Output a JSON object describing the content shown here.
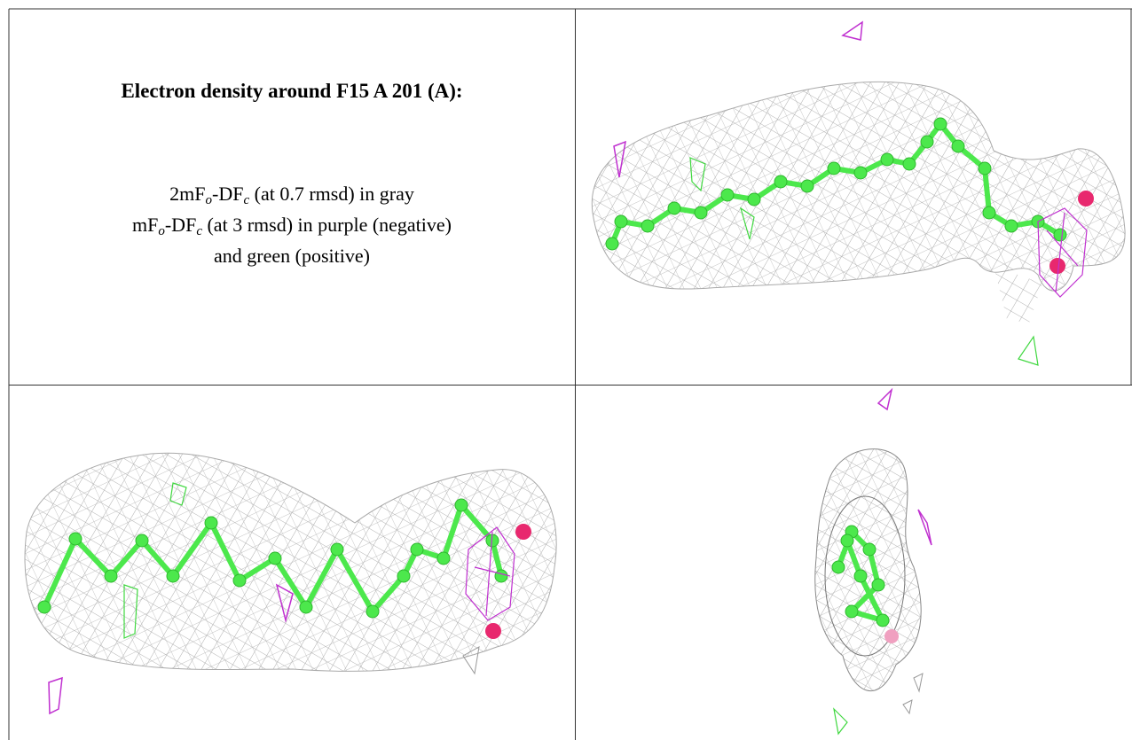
{
  "panel": {
    "title": "Electron density around F15 A 201 (A):",
    "legend": [
      [
        "2mF",
        "o",
        "-DF",
        "c",
        " (at 0.7 rmsd) in gray"
      ],
      [
        "mF",
        "o",
        "-DF",
        "c",
        " (at 3 rmsd) in purple (negative)"
      ],
      [
        "and green (positive)"
      ]
    ]
  }
}
